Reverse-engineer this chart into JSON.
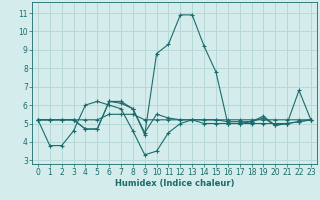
{
  "xlabel": "Humidex (Indice chaleur)",
  "background_color": "#d4ecec",
  "grid_color": "#b8d8d8",
  "line_color": "#1a6b6b",
  "xlim": [
    -0.5,
    23.5
  ],
  "ylim": [
    2.8,
    11.6
  ],
  "xticks": [
    0,
    1,
    2,
    3,
    4,
    5,
    6,
    7,
    8,
    9,
    10,
    11,
    12,
    13,
    14,
    15,
    16,
    17,
    18,
    19,
    20,
    21,
    22,
    23
  ],
  "yticks": [
    3,
    4,
    5,
    6,
    7,
    8,
    9,
    10,
    11
  ],
  "series": [
    [
      5.2,
      3.8,
      3.8,
      4.6,
      6.0,
      6.2,
      6.0,
      5.8,
      4.6,
      3.3,
      3.5,
      4.5,
      5.0,
      5.2,
      5.0,
      5.0,
      5.0,
      5.0,
      5.0,
      5.0,
      5.0,
      5.0,
      5.1,
      5.2
    ],
    [
      5.2,
      5.2,
      5.2,
      5.2,
      4.7,
      4.7,
      6.2,
      6.2,
      5.8,
      4.4,
      8.8,
      9.3,
      10.9,
      10.9,
      9.2,
      7.8,
      5.0,
      5.0,
      5.1,
      5.4,
      4.9,
      5.0,
      6.8,
      5.2
    ],
    [
      5.2,
      5.2,
      5.2,
      5.2,
      4.7,
      4.7,
      6.2,
      6.1,
      5.8,
      4.5,
      5.5,
      5.3,
      5.2,
      5.2,
      5.2,
      5.2,
      5.1,
      5.1,
      5.1,
      5.3,
      4.9,
      5.0,
      5.1,
      5.2
    ],
    [
      5.2,
      5.2,
      5.2,
      5.2,
      5.2,
      5.2,
      5.5,
      5.5,
      5.5,
      5.2,
      5.2,
      5.2,
      5.2,
      5.2,
      5.2,
      5.2,
      5.2,
      5.2,
      5.2,
      5.2,
      5.2,
      5.2,
      5.2,
      5.2
    ]
  ]
}
